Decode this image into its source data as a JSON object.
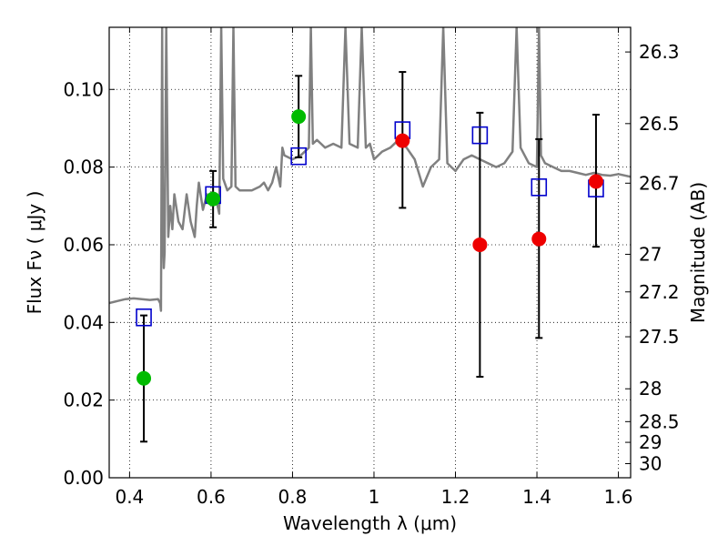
{
  "chart_data": {
    "type": "scatter",
    "xlabel": "Wavelength  λ (μm)",
    "ylabel": "Flux  Fν  ( μJy )",
    "y2label": "Magnitude (AB)",
    "xlim": [
      0.35,
      1.63
    ],
    "ylim": [
      0.0,
      0.116
    ],
    "grid": true,
    "x_ticks": [
      0.4,
      0.6,
      0.8,
      1.0,
      1.2,
      1.4,
      1.6
    ],
    "x_tick_labels": [
      "0.4",
      "0.6",
      "0.8",
      "1",
      "1.2",
      "1.4",
      "1.6"
    ],
    "y_ticks": [
      0.0,
      0.02,
      0.04,
      0.06,
      0.08,
      0.1
    ],
    "y_tick_labels": [
      "0.00",
      "0.02",
      "0.04",
      "0.06",
      "0.08",
      "0.10"
    ],
    "mag_ticks": [
      26.3,
      26.5,
      26.7,
      27,
      27.2,
      27.5,
      28,
      28.5,
      29,
      30
    ],
    "mag_tick_labels": [
      "26.3",
      "26.5",
      "26.7",
      "27",
      "27.2",
      "27.5",
      "28",
      "28.5",
      "29",
      "30"
    ],
    "colors": {
      "spectrum": "#808080",
      "model": "#0000cc",
      "green": "#00bb00",
      "red": "#ee0000",
      "errorbar": "#000000"
    },
    "spectrum": {
      "x": [
        0.35,
        0.37,
        0.39,
        0.41,
        0.43,
        0.45,
        0.47,
        0.475,
        0.477,
        0.48,
        0.482,
        0.484,
        0.486,
        0.49,
        0.495,
        0.5,
        0.505,
        0.51,
        0.52,
        0.53,
        0.54,
        0.55,
        0.56,
        0.565,
        0.57,
        0.58,
        0.59,
        0.6,
        0.61,
        0.62,
        0.625,
        0.63,
        0.64,
        0.65,
        0.655,
        0.66,
        0.67,
        0.68,
        0.7,
        0.72,
        0.73,
        0.74,
        0.75,
        0.76,
        0.77,
        0.775,
        0.78,
        0.8,
        0.82,
        0.84,
        0.845,
        0.85,
        0.86,
        0.87,
        0.88,
        0.9,
        0.92,
        0.93,
        0.94,
        0.96,
        0.97,
        0.98,
        0.99,
        1.0,
        1.02,
        1.04,
        1.06,
        1.08,
        1.1,
        1.12,
        1.14,
        1.16,
        1.17,
        1.18,
        1.19,
        1.2,
        1.22,
        1.24,
        1.26,
        1.28,
        1.3,
        1.32,
        1.34,
        1.35,
        1.36,
        1.38,
        1.4,
        1.405,
        1.41,
        1.42,
        1.44,
        1.46,
        1.48,
        1.5,
        1.52,
        1.54,
        1.56,
        1.58,
        1.6,
        1.63
      ],
      "y": [
        0.045,
        0.0455,
        0.046,
        0.0462,
        0.046,
        0.0458,
        0.046,
        0.045,
        0.043,
        0.116,
        0.062,
        0.054,
        0.058,
        0.116,
        0.062,
        0.07,
        0.064,
        0.073,
        0.066,
        0.064,
        0.073,
        0.066,
        0.062,
        0.07,
        0.076,
        0.069,
        0.073,
        0.071,
        0.073,
        0.068,
        0.116,
        0.077,
        0.074,
        0.075,
        0.116,
        0.075,
        0.074,
        0.074,
        0.074,
        0.075,
        0.076,
        0.074,
        0.076,
        0.08,
        0.075,
        0.085,
        0.083,
        0.082,
        0.083,
        0.085,
        0.116,
        0.086,
        0.087,
        0.086,
        0.085,
        0.086,
        0.085,
        0.116,
        0.086,
        0.085,
        0.116,
        0.085,
        0.086,
        0.082,
        0.084,
        0.085,
        0.087,
        0.085,
        0.082,
        0.075,
        0.08,
        0.082,
        0.116,
        0.081,
        0.08,
        0.079,
        0.082,
        0.083,
        0.082,
        0.081,
        0.08,
        0.081,
        0.084,
        0.116,
        0.085,
        0.081,
        0.08,
        0.116,
        0.083,
        0.081,
        0.08,
        0.079,
        0.079,
        0.0785,
        0.078,
        0.0785,
        0.078,
        0.0778,
        0.0782,
        0.0775
      ]
    },
    "model_points": {
      "x": [
        0.435,
        0.605,
        0.815,
        1.07,
        1.26,
        1.405,
        1.545
      ],
      "y": [
        0.0413,
        0.0728,
        0.0828,
        0.0895,
        0.0882,
        0.0748,
        0.0745
      ]
    },
    "observed_points": [
      {
        "x": 0.435,
        "y": 0.0256,
        "err_low": 0.0093,
        "err_high": 0.0418,
        "color": "green"
      },
      {
        "x": 0.605,
        "y": 0.0718,
        "err_low": 0.0645,
        "err_high": 0.079,
        "color": "green"
      },
      {
        "x": 0.815,
        "y": 0.093,
        "err_low": 0.0825,
        "err_high": 0.1035,
        "color": "green"
      },
      {
        "x": 1.07,
        "y": 0.0868,
        "err_low": 0.0695,
        "err_high": 0.1045,
        "color": "red"
      },
      {
        "x": 1.26,
        "y": 0.06,
        "err_low": 0.026,
        "err_high": 0.094,
        "color": "red"
      },
      {
        "x": 1.405,
        "y": 0.0615,
        "err_low": 0.036,
        "err_high": 0.0872,
        "color": "red"
      },
      {
        "x": 1.545,
        "y": 0.0763,
        "err_low": 0.0595,
        "err_high": 0.0935,
        "color": "red"
      }
    ]
  }
}
